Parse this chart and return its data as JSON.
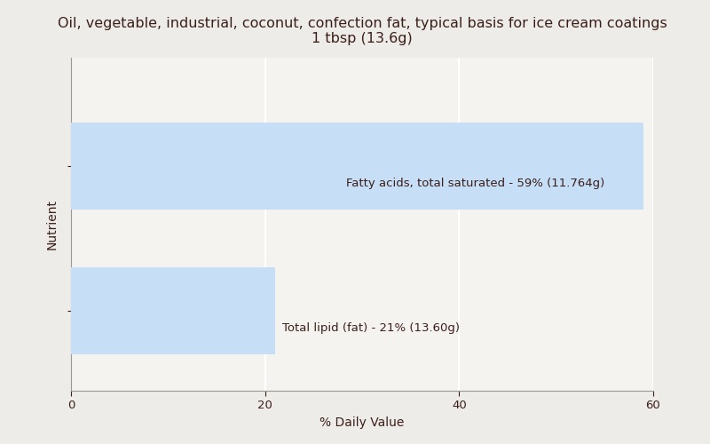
{
  "title_line1": "Oil, vegetable, industrial, coconut, confection fat, typical basis for ice cream coatings",
  "title_line2": "1 tbsp (13.6g)",
  "nutrients": [
    "Fatty acids, total saturated",
    "Total lipid (fat)"
  ],
  "values": [
    59,
    21
  ],
  "labels": [
    "Fatty acids, total saturated - 59% (11.764g)",
    "Total lipid (fat) - 21% (13.60g)"
  ],
  "bar_color": "#c6dff7",
  "bar_height": 0.6,
  "xlabel": "% Daily Value",
  "ylabel": "Nutrient",
  "xlim": [
    0,
    60
  ],
  "xticks": [
    0,
    20,
    40,
    60
  ],
  "background_color": "#eeece8",
  "axes_background": "#f5f3f0",
  "title_color": "#3b1f1a",
  "label_color": "#3b1f1a",
  "title_fontsize": 11.5,
  "label_fontsize": 9.5,
  "axis_label_fontsize": 10,
  "grid_color": "#ffffff",
  "ylim": [
    -0.55,
    1.75
  ]
}
